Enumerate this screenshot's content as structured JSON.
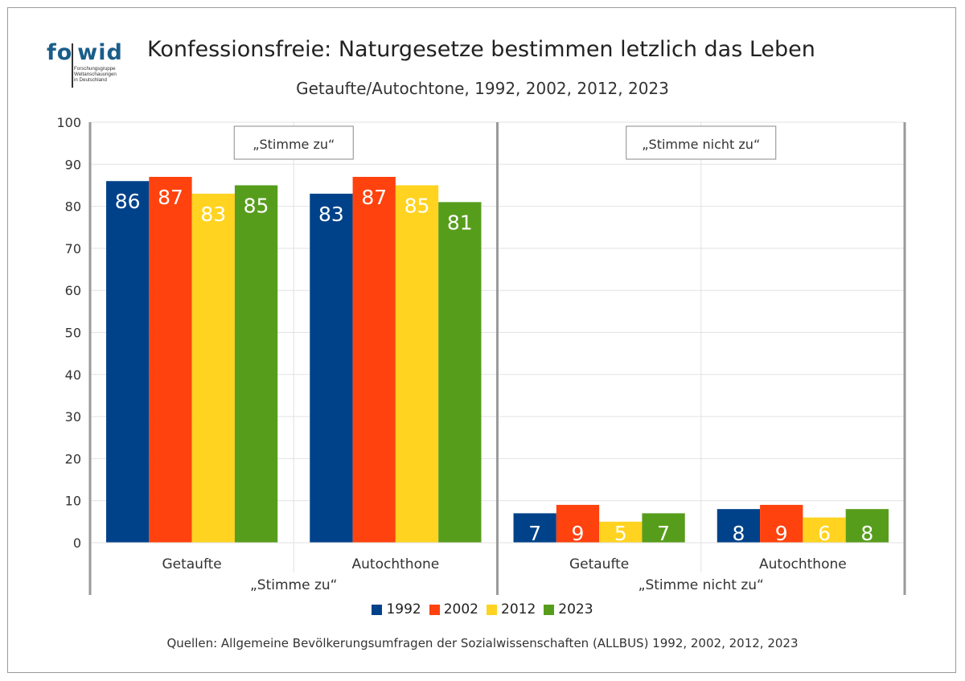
{
  "logo": {
    "word_fo": "fo",
    "word_wid": "wid",
    "sub_lines": [
      "Forschungsgruppe",
      "Weltanschauungen",
      "in Deutschland"
    ]
  },
  "title": "Konfessionsfreie: Naturgesetze bestimmen letzlich das Leben",
  "subtitle": "Getaufte/Autochtone, 1992, 2002, 2012, 2023",
  "source": "Quellen: Allgemeine Bevölkerungsumfragen der Sozialwissenschaften (ALLBUS) 1992, 2002, 2012, 2023",
  "chart_data": {
    "type": "bar",
    "ylim": [
      0,
      100
    ],
    "yticks": [
      0,
      10,
      20,
      30,
      40,
      50,
      60,
      70,
      80,
      90,
      100
    ],
    "grid": true,
    "legend_position": "bottom",
    "panels": [
      {
        "label": "„Stimme zu“",
        "box_label": "„Stimme zu“",
        "groups": [
          {
            "category": "Getaufte",
            "values": [
              86,
              87,
              83,
              85
            ]
          },
          {
            "category": "Autochthone",
            "values": [
              83,
              87,
              85,
              81
            ]
          }
        ]
      },
      {
        "label": "„Stimme nicht zu“",
        "box_label": "„Stimme nicht zu“",
        "groups": [
          {
            "category": "Getaufte",
            "values": [
              7,
              9,
              5,
              7
            ]
          },
          {
            "category": "Autochthone",
            "values": [
              8,
              9,
              6,
              8
            ]
          }
        ]
      }
    ],
    "series": [
      {
        "name": "1992",
        "color": "#00428a"
      },
      {
        "name": "2002",
        "color": "#ff420e"
      },
      {
        "name": "2012",
        "color": "#ffd320"
      },
      {
        "name": "2023",
        "color": "#579d1c"
      }
    ]
  }
}
